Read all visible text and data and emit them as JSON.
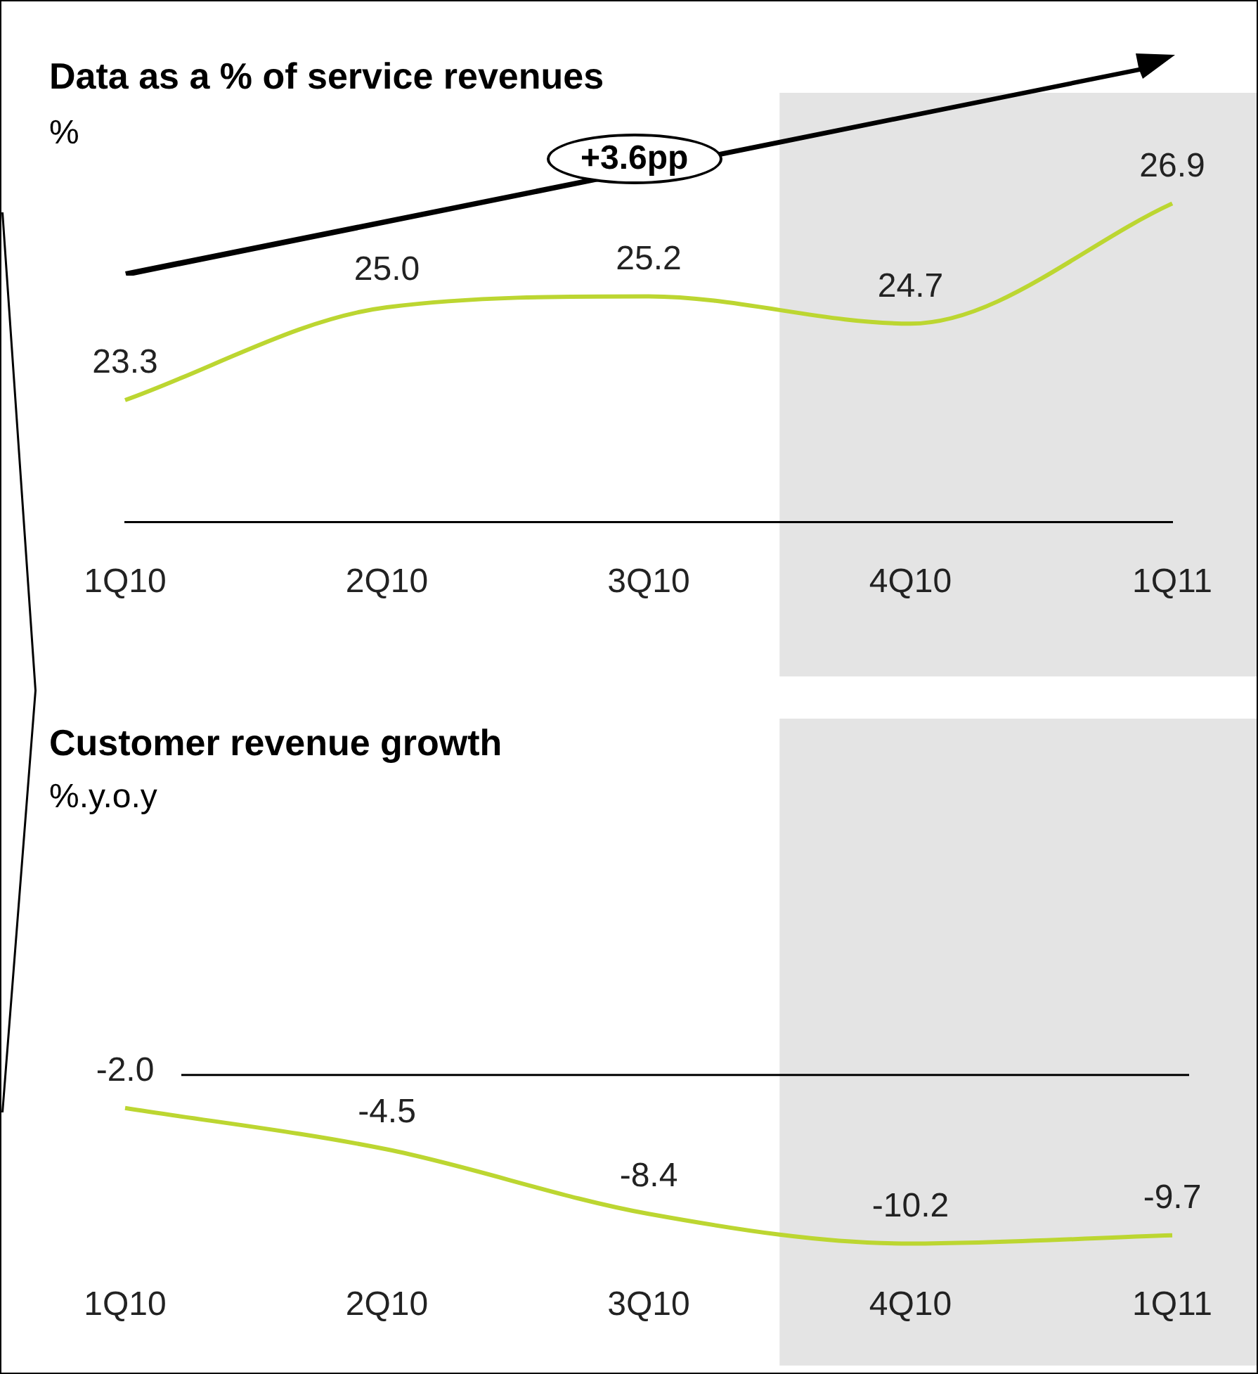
{
  "chart_data": [
    {
      "type": "line",
      "title": "Data as a % of service revenues",
      "subtitle": "%",
      "categories": [
        "1Q10",
        "2Q10",
        "3Q10",
        "4Q10",
        "1Q11"
      ],
      "series": [
        {
          "color": "#bcd631",
          "values": [
            23.3,
            25.0,
            25.2,
            24.7,
            26.9
          ],
          "value_labels": [
            "23.3",
            "25.0",
            "25.2",
            "24.7",
            "26.9"
          ]
        }
      ],
      "grid": false,
      "legend": false,
      "tick_labels": "x",
      "marker": "none",
      "bands": [
        {
          "axis": "x",
          "from": "4Q10",
          "to": "1Q11",
          "color": "#e4e4e4"
        }
      ],
      "annotations": [
        "+3.6pp"
      ]
    },
    {
      "type": "line",
      "title": "Customer revenue growth",
      "subtitle": "%.y.o.y",
      "categories": [
        "1Q10",
        "2Q10",
        "3Q10",
        "4Q10",
        "1Q11"
      ],
      "series": [
        {
          "color": "#bcd631",
          "values": [
            -2.0,
            -4.5,
            -8.4,
            -10.2,
            -9.7
          ],
          "value_labels": [
            "-2.0",
            "-4.5",
            "-8.4",
            "-10.2",
            "-9.7"
          ]
        }
      ],
      "grid": false,
      "legend": false,
      "tick_labels": "x",
      "marker": "none",
      "bands": [
        {
          "axis": "x",
          "from": "4Q10",
          "to": "1Q11",
          "color": "#e4e4e4"
        }
      ],
      "ref_lines": [
        {
          "axis": "y",
          "value": 0,
          "color": "#000000"
        }
      ]
    }
  ]
}
